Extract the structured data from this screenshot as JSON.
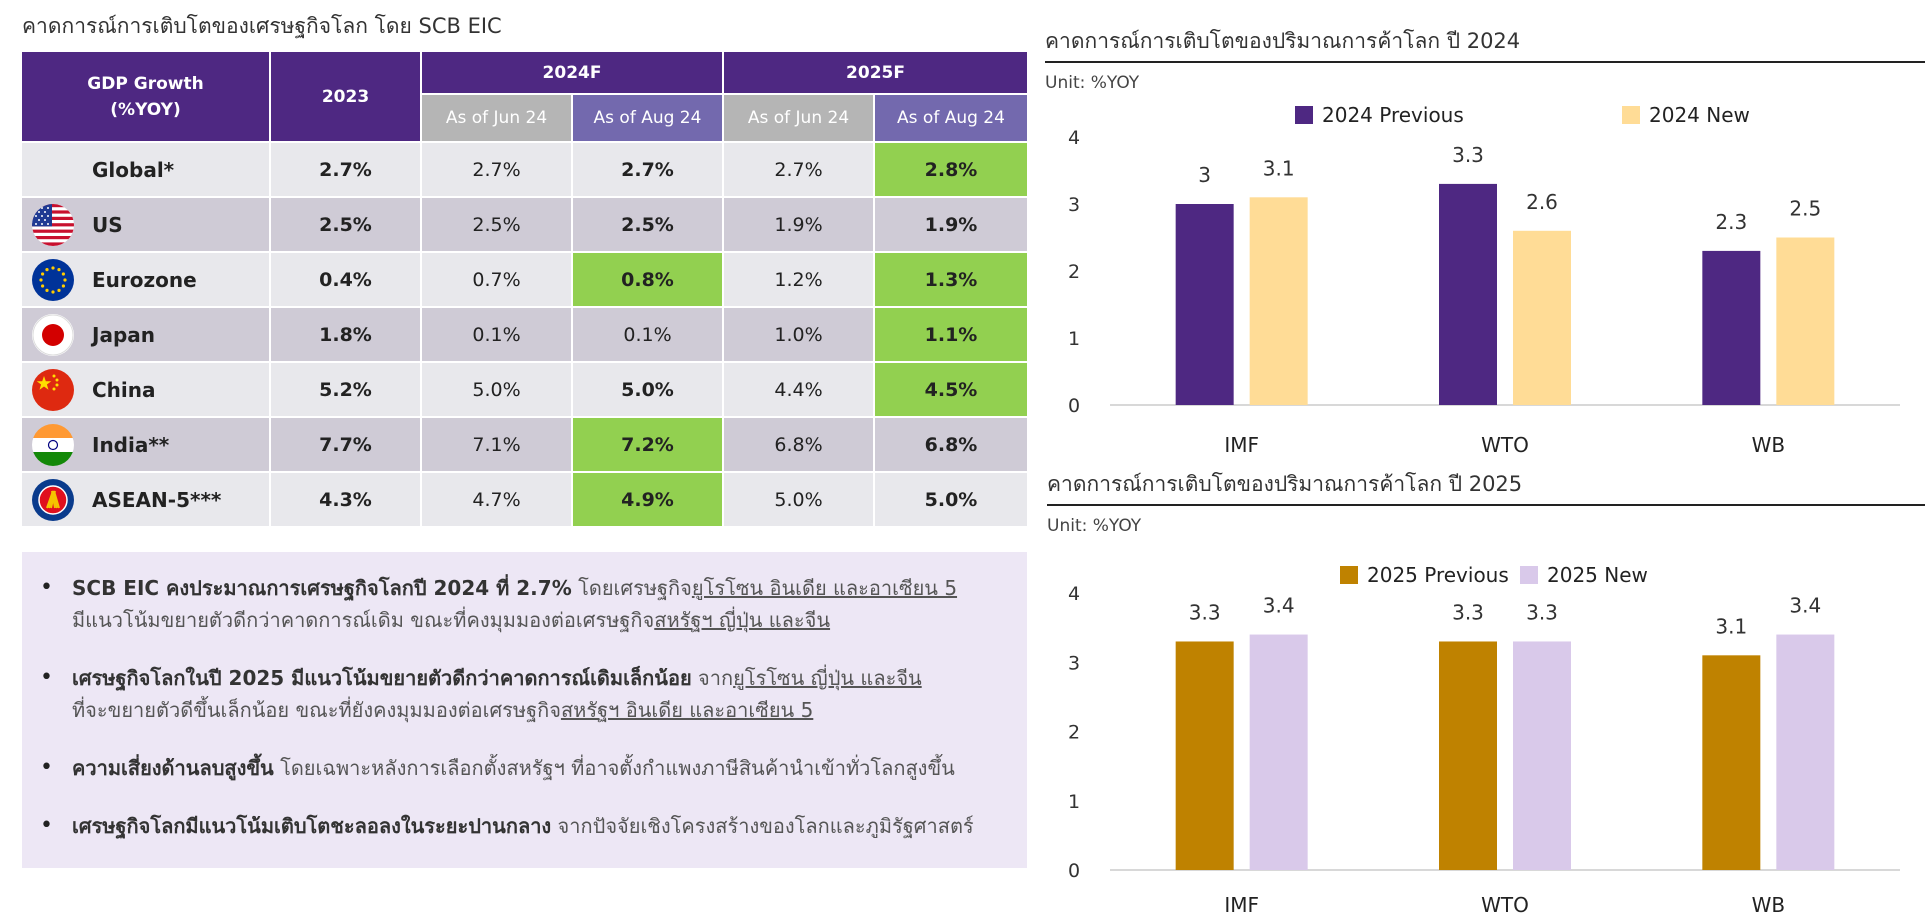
{
  "left_title": "คาดการณ์การเติบโตของเศรษฐกิจโลก โดย SCB EIC",
  "table": {
    "head_label_1": "GDP Growth",
    "head_label_2": "(%YOY)",
    "col_2023": "2023",
    "group_2024": "2024F",
    "group_2025": "2025F",
    "sub_jun": "As of Jun 24",
    "sub_aug": "As of Aug 24",
    "highlight_color": "#92d050",
    "rows": [
      {
        "name": "Global*",
        "flag": "none",
        "v2023": "2.7%",
        "j24": "2.7%",
        "a24": "2.7%",
        "j25": "2.7%",
        "a25": "2.8%",
        "hl_a24": false,
        "hl_a25": true
      },
      {
        "name": "US",
        "flag": "us-flag-icon",
        "v2023": "2.5%",
        "j24": "2.5%",
        "a24": "2.5%",
        "j25": "1.9%",
        "a25": "1.9%",
        "hl_a24": false,
        "hl_a25": false
      },
      {
        "name": "Eurozone",
        "flag": "eu-flag-icon",
        "v2023": "0.4%",
        "j24": "0.7%",
        "a24": "0.8%",
        "j25": "1.2%",
        "a25": "1.3%",
        "hl_a24": true,
        "hl_a25": true
      },
      {
        "name": "Japan",
        "flag": "japan-flag-icon",
        "v2023": "1.8%",
        "j24": "0.1%",
        "a24": "0.1%",
        "j25": "1.0%",
        "a25": "1.1%",
        "hl_a24": false,
        "hl_a25": true
      },
      {
        "name": "China",
        "flag": "china-flag-icon",
        "v2023": "5.2%",
        "j24": "5.0%",
        "a24": "5.0%",
        "j25": "4.4%",
        "a25": "4.5%",
        "hl_a24": false,
        "hl_a25": true
      },
      {
        "name": "India**",
        "flag": "india-flag-icon",
        "v2023": "7.7%",
        "j24": "7.1%",
        "a24": "7.2%",
        "j25": "6.8%",
        "a25": "6.8%",
        "hl_a24": true,
        "hl_a25": false
      },
      {
        "name": "ASEAN-5***",
        "flag": "asean-flag-icon",
        "v2023": "4.3%",
        "j24": "4.7%",
        "a24": "4.9%",
        "j25": "5.0%",
        "a25": "5.0%",
        "hl_a24": true,
        "hl_a25": false
      }
    ]
  },
  "notes": [
    {
      "b": "SCB EIC คงประมาณการเศรษฐกิจโลกปี 2024 ที่ 2.7%",
      "t1": " โดยเศรษฐกิจ",
      "u1": "ยูโรโซน อินเดีย และอาเซียน 5",
      "line2_t": "มีแนวโน้มขยายตัวดีกว่าคาดการณ์เดิม ขณะที่คงมุมมองต่อเศรษฐกิจ",
      "line2_u": "สหรัฐฯ ญี่ปุ่น และจีน"
    },
    {
      "b": "เศรษฐกิจโลกในปี 2025 มีแนวโน้มขยายตัวดีกว่าคาดการณ์เดิมเล็กน้อย",
      "t1": " จาก",
      "u1": "ยูโรโซน ญี่ปุ่น และจีน",
      "line2_t": "ที่จะขยายตัวดีขึ้นเล็กน้อย ขณะที่ยังคงมุมมองต่อเศรษฐกิจ",
      "line2_u": "สหรัฐฯ อินเดีย และอาเซียน 5"
    },
    {
      "b": "ความเสี่ยงด้านลบสูงขึ้น",
      "t1": " โดยเฉพาะหลังการเลือกตั้งสหรัฐฯ ที่อาจตั้งกำแพงภาษีสินค้านำเข้าทั่วโลกสูงขึ้น",
      "u1": "",
      "line2_t": "",
      "line2_u": ""
    },
    {
      "b": "เศรษฐกิจโลกมีแนวโน้มเติบโตชะลอลงในระยะปานกลาง",
      "t1": " จากปัจจัยเชิงโครงสร้างของโลกและภูมิรัฐศาสตร์",
      "u1": "",
      "line2_t": "",
      "line2_u": ""
    }
  ],
  "chart_data": [
    {
      "type": "bar",
      "title": "คาดการณ์การเติบโตของปริมาณการค้าโลก ปี 2024",
      "unit": "Unit: %YOY",
      "categories": [
        "IMF",
        "WTO",
        "WB"
      ],
      "ylim": [
        0,
        4
      ],
      "yticks": [
        0,
        1,
        2,
        3,
        4
      ],
      "legend_position": "top",
      "series": [
        {
          "name": "2024 Previous",
          "color": "#4e2882",
          "values": [
            3,
            3.3,
            2.3
          ]
        },
        {
          "name": "2024 New",
          "color": "#ffdc96",
          "values": [
            3.1,
            2.6,
            2.5
          ]
        }
      ]
    },
    {
      "type": "bar",
      "title": "คาดการณ์การเติบโตของปริมาณการค้าโลก ปี 2025",
      "unit": "Unit: %YOY",
      "categories": [
        "IMF",
        "WTO",
        "WB"
      ],
      "ylim": [
        0,
        4
      ],
      "yticks": [
        0,
        1,
        2,
        3,
        4
      ],
      "legend_position": "top",
      "series": [
        {
          "name": "2025 Previous",
          "color": "#bf8200",
          "values": [
            3.3,
            3.3,
            3.1
          ]
        },
        {
          "name": "2025 New",
          "color": "#d9c9ea",
          "values": [
            3.4,
            3.3,
            3.4
          ]
        }
      ]
    }
  ]
}
